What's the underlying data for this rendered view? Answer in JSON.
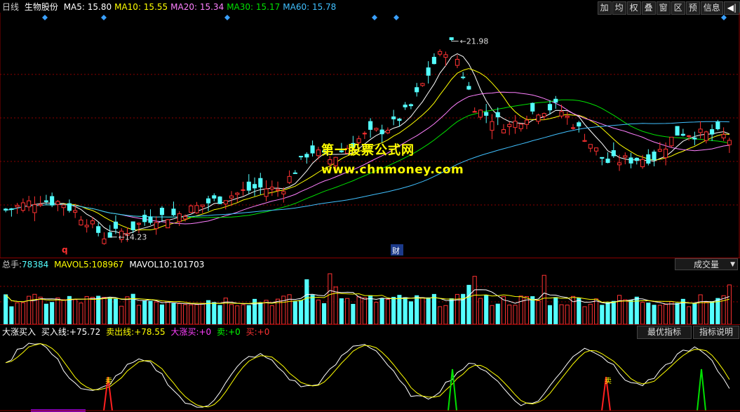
{
  "main": {
    "period": "日线",
    "stock_name": "生物股份",
    "ma": [
      {
        "label": "MA5:",
        "value": "15.80",
        "color": "#ffffff"
      },
      {
        "label": "MA10:",
        "value": "15.55",
        "color": "#ffff00"
      },
      {
        "label": "MA20:",
        "value": "15.34",
        "color": "#ff80ff"
      },
      {
        "label": "MA30:",
        "value": "15.17",
        "color": "#00e000"
      },
      {
        "label": "MA60:",
        "value": "15.78",
        "color": "#40c0ff"
      }
    ],
    "high_label": "21.98",
    "low_label": "14.23",
    "event_mark_q": "q",
    "event_mark_cai": "财"
  },
  "toolbar": {
    "buttons": [
      "加",
      "均",
      "权",
      "叠",
      "窗",
      "区",
      "预",
      "信息"
    ],
    "exit": "◀|"
  },
  "watermark": {
    "line1": "第一股票公式网",
    "line2": "www.chnmoney.com"
  },
  "volume": {
    "label": "总手:",
    "value": "78384",
    "mavol5_label": "MAVOL5:",
    "mavol5": "108967",
    "mavol10_label": "MAVOL10:",
    "mavol10": "101703",
    "dropdown": "成交量"
  },
  "indicator": {
    "name": "大涨买入",
    "buy_line_label": "买入线:",
    "buy_line": "+75.72",
    "sell_line_label": "卖出线:",
    "sell_line": "+78.55",
    "big_buy_label": "大涨买:",
    "big_buy": "+0",
    "sell_label": "卖:",
    "sell": "+0",
    "buy_label": "买:",
    "buy": "+0",
    "btn_best": "最优指标",
    "btn_help": "指标说明",
    "sell_marker_text": "卖"
  },
  "chart_data": {
    "type": "candlestick",
    "y_range_approx": [
      14.0,
      22.5
    ],
    "high": 21.98,
    "low": 14.23,
    "up_color": "#ff3232",
    "down_color": "#54ffff"
  }
}
